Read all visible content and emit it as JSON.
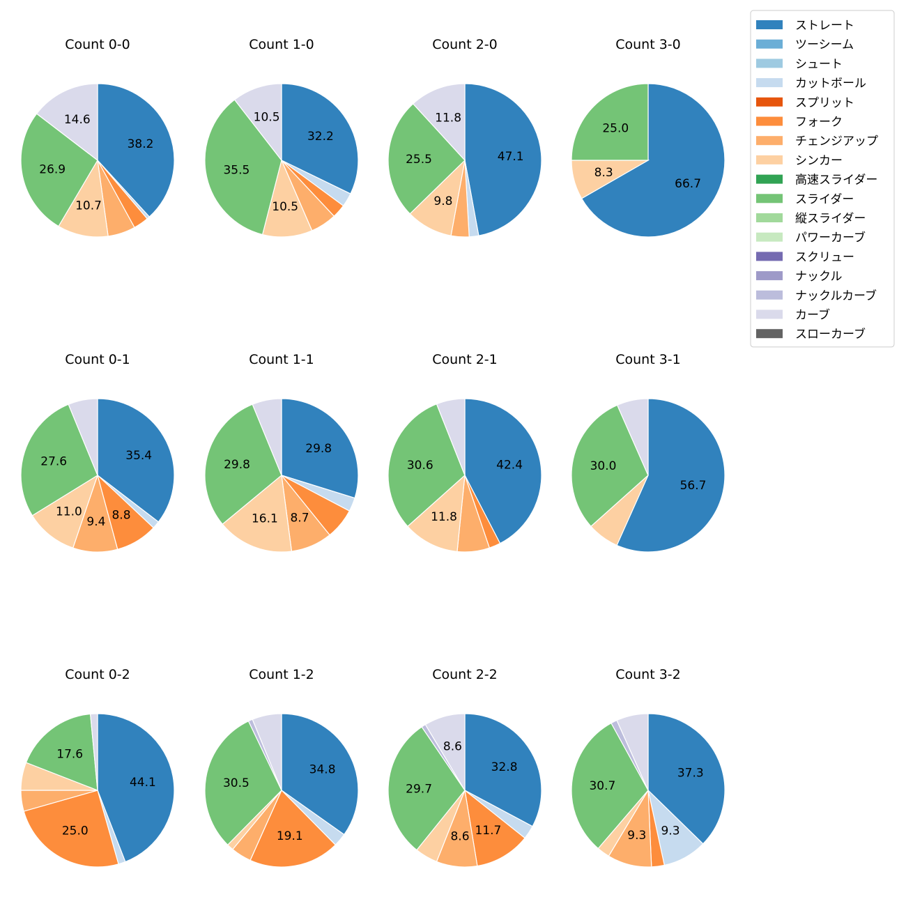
{
  "legend": {
    "location": "top-right",
    "entries": [
      {
        "name": "ストレート",
        "color": "#3182bd"
      },
      {
        "name": "ツーシーム",
        "color": "#6baed6"
      },
      {
        "name": "シュート",
        "color": "#9ecae1"
      },
      {
        "name": "カットボール",
        "color": "#c6dbef"
      },
      {
        "name": "スプリット",
        "color": "#e6550d"
      },
      {
        "name": "フォーク",
        "color": "#fd8d3c"
      },
      {
        "name": "チェンジアップ",
        "color": "#fdae6b"
      },
      {
        "name": "シンカー",
        "color": "#fdd0a2"
      },
      {
        "name": "高速スライダー",
        "color": "#31a354"
      },
      {
        "name": "スライダー",
        "color": "#74c476"
      },
      {
        "name": "縦スライダー",
        "color": "#a1d99b"
      },
      {
        "name": "パワーカーブ",
        "color": "#c7e9c0"
      },
      {
        "name": "スクリュー",
        "color": "#756bb1"
      },
      {
        "name": "ナックル",
        "color": "#9e9ac8"
      },
      {
        "name": "ナックルカーブ",
        "color": "#bcbddc"
      },
      {
        "name": "カーブ",
        "color": "#dadaeb"
      },
      {
        "name": "スローカーブ",
        "color": "#636363"
      }
    ]
  },
  "chart_data": [
    {
      "type": "pie",
      "title": "Count 0-0",
      "slices": [
        {
          "category": "ストレート",
          "value": 38.2,
          "label": "38.2"
        },
        {
          "category": "カットボール",
          "value": 0.6,
          "label": ""
        },
        {
          "category": "フォーク",
          "value": 3.2,
          "label": ""
        },
        {
          "category": "チェンジアップ",
          "value": 5.8,
          "label": ""
        },
        {
          "category": "シンカー",
          "value": 10.7,
          "label": "10.7"
        },
        {
          "category": "スライダー",
          "value": 26.9,
          "label": "26.9"
        },
        {
          "category": "カーブ",
          "value": 14.6,
          "label": "14.6"
        }
      ]
    },
    {
      "type": "pie",
      "title": "Count 1-0",
      "slices": [
        {
          "category": "ストレート",
          "value": 32.2,
          "label": "32.2"
        },
        {
          "category": "カットボール",
          "value": 2.9,
          "label": ""
        },
        {
          "category": "フォーク",
          "value": 2.9,
          "label": ""
        },
        {
          "category": "チェンジアップ",
          "value": 5.5,
          "label": ""
        },
        {
          "category": "シンカー",
          "value": 10.5,
          "label": "10.5"
        },
        {
          "category": "スライダー",
          "value": 35.5,
          "label": "35.5"
        },
        {
          "category": "カーブ",
          "value": 10.5,
          "label": "10.5"
        }
      ]
    },
    {
      "type": "pie",
      "title": "Count 2-0",
      "slices": [
        {
          "category": "ストレート",
          "value": 47.1,
          "label": "47.1"
        },
        {
          "category": "カットボール",
          "value": 2.0,
          "label": ""
        },
        {
          "category": "チェンジアップ",
          "value": 3.8,
          "label": ""
        },
        {
          "category": "シンカー",
          "value": 9.8,
          "label": "9.8"
        },
        {
          "category": "スライダー",
          "value": 25.5,
          "label": "25.5"
        },
        {
          "category": "カーブ",
          "value": 11.8,
          "label": "11.8"
        }
      ]
    },
    {
      "type": "pie",
      "title": "Count 3-0",
      "slices": [
        {
          "category": "ストレート",
          "value": 66.7,
          "label": "66.7"
        },
        {
          "category": "シンカー",
          "value": 8.3,
          "label": "8.3"
        },
        {
          "category": "スライダー",
          "value": 25.0,
          "label": "25.0"
        }
      ]
    },
    {
      "type": "pie",
      "title": "Count 0-1",
      "slices": [
        {
          "category": "ストレート",
          "value": 35.4,
          "label": "35.4"
        },
        {
          "category": "カットボール",
          "value": 1.6,
          "label": ""
        },
        {
          "category": "フォーク",
          "value": 8.8,
          "label": "8.8"
        },
        {
          "category": "チェンジアップ",
          "value": 9.4,
          "label": "9.4"
        },
        {
          "category": "シンカー",
          "value": 11.0,
          "label": "11.0"
        },
        {
          "category": "スライダー",
          "value": 27.6,
          "label": "27.6"
        },
        {
          "category": "カーブ",
          "value": 6.2,
          "label": ""
        }
      ]
    },
    {
      "type": "pie",
      "title": "Count 1-1",
      "slices": [
        {
          "category": "ストレート",
          "value": 29.8,
          "label": "29.8"
        },
        {
          "category": "カットボール",
          "value": 2.9,
          "label": ""
        },
        {
          "category": "フォーク",
          "value": 6.5,
          "label": ""
        },
        {
          "category": "チェンジアップ",
          "value": 8.7,
          "label": "8.7"
        },
        {
          "category": "シンカー",
          "value": 16.1,
          "label": "16.1"
        },
        {
          "category": "スライダー",
          "value": 29.8,
          "label": "29.8"
        },
        {
          "category": "カーブ",
          "value": 6.2,
          "label": ""
        }
      ]
    },
    {
      "type": "pie",
      "title": "Count 2-1",
      "slices": [
        {
          "category": "ストレート",
          "value": 42.4,
          "label": "42.4"
        },
        {
          "category": "フォーク",
          "value": 2.4,
          "label": ""
        },
        {
          "category": "チェンジアップ",
          "value": 6.8,
          "label": ""
        },
        {
          "category": "シンカー",
          "value": 11.8,
          "label": "11.8"
        },
        {
          "category": "スライダー",
          "value": 30.6,
          "label": "30.6"
        },
        {
          "category": "カーブ",
          "value": 6.0,
          "label": ""
        }
      ]
    },
    {
      "type": "pie",
      "title": "Count 3-1",
      "slices": [
        {
          "category": "ストレート",
          "value": 56.7,
          "label": "56.7"
        },
        {
          "category": "シンカー",
          "value": 6.7,
          "label": ""
        },
        {
          "category": "スライダー",
          "value": 30.0,
          "label": "30.0"
        },
        {
          "category": "カーブ",
          "value": 6.6,
          "label": ""
        }
      ]
    },
    {
      "type": "pie",
      "title": "Count 0-2",
      "slices": [
        {
          "category": "ストレート",
          "value": 44.1,
          "label": "44.1"
        },
        {
          "category": "カットボール",
          "value": 1.5,
          "label": ""
        },
        {
          "category": "フォーク",
          "value": 25.0,
          "label": "25.0"
        },
        {
          "category": "チェンジアップ",
          "value": 4.4,
          "label": ""
        },
        {
          "category": "シンカー",
          "value": 5.9,
          "label": ""
        },
        {
          "category": "スライダー",
          "value": 17.6,
          "label": "17.6"
        },
        {
          "category": "カーブ",
          "value": 1.5,
          "label": ""
        }
      ]
    },
    {
      "type": "pie",
      "title": "Count 1-2",
      "slices": [
        {
          "category": "ストレート",
          "value": 34.8,
          "label": "34.8"
        },
        {
          "category": "カットボール",
          "value": 2.8,
          "label": ""
        },
        {
          "category": "フォーク",
          "value": 19.1,
          "label": "19.1"
        },
        {
          "category": "チェンジアップ",
          "value": 4.3,
          "label": ""
        },
        {
          "category": "シンカー",
          "value": 1.4,
          "label": ""
        },
        {
          "category": "スライダー",
          "value": 30.5,
          "label": "30.5"
        },
        {
          "category": "ナックルカーブ",
          "value": 0.9,
          "label": ""
        },
        {
          "category": "カーブ",
          "value": 6.2,
          "label": ""
        }
      ]
    },
    {
      "type": "pie",
      "title": "Count 2-2",
      "slices": [
        {
          "category": "ストレート",
          "value": 32.8,
          "label": "32.8"
        },
        {
          "category": "カットボール",
          "value": 2.9,
          "label": ""
        },
        {
          "category": "フォーク",
          "value": 11.7,
          "label": "11.7"
        },
        {
          "category": "チェンジアップ",
          "value": 8.6,
          "label": "8.6"
        },
        {
          "category": "シンカー",
          "value": 4.8,
          "label": ""
        },
        {
          "category": "スライダー",
          "value": 29.7,
          "label": "29.7"
        },
        {
          "category": "ナックルカーブ",
          "value": 0.9,
          "label": ""
        },
        {
          "category": "カーブ",
          "value": 8.6,
          "label": "8.6"
        }
      ]
    },
    {
      "type": "pie",
      "title": "Count 3-2",
      "slices": [
        {
          "category": "ストレート",
          "value": 37.3,
          "label": "37.3"
        },
        {
          "category": "カットボール",
          "value": 9.3,
          "label": "9.3"
        },
        {
          "category": "フォーク",
          "value": 2.7,
          "label": ""
        },
        {
          "category": "チェンジアップ",
          "value": 9.3,
          "label": "9.3"
        },
        {
          "category": "シンカー",
          "value": 2.7,
          "label": ""
        },
        {
          "category": "スライダー",
          "value": 30.7,
          "label": "30.7"
        },
        {
          "category": "ナックルカーブ",
          "value": 1.3,
          "label": ""
        },
        {
          "category": "カーブ",
          "value": 6.7,
          "label": ""
        }
      ]
    }
  ]
}
